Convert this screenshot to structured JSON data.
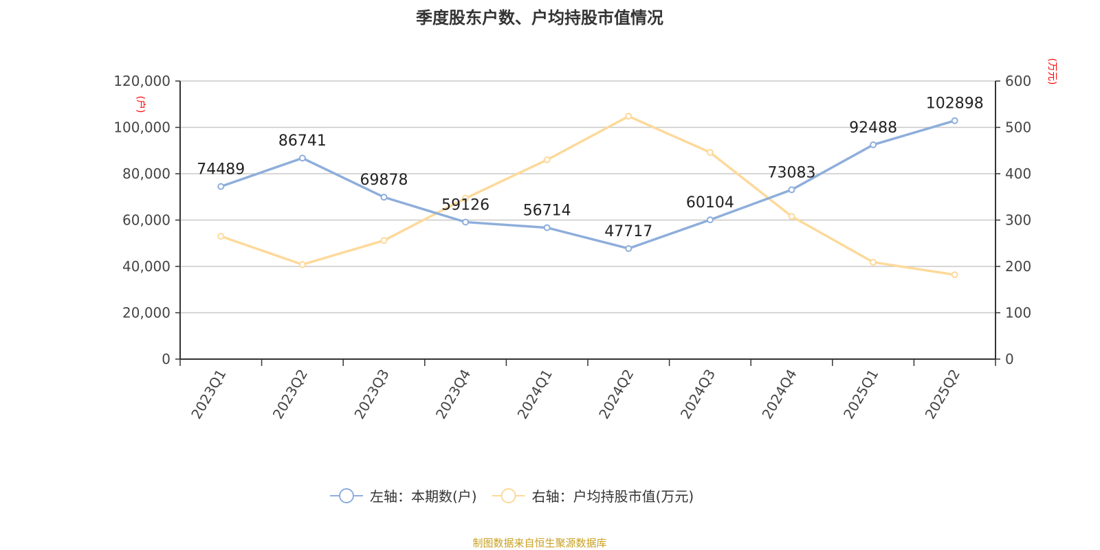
{
  "chart_data": {
    "type": "line",
    "title": "季度股东户数、户均持股市值情况",
    "categories": [
      "2023Q1",
      "2023Q2",
      "2023Q3",
      "2023Q4",
      "2024Q1",
      "2024Q2",
      "2024Q3",
      "2024Q4",
      "2025Q1",
      "2025Q2"
    ],
    "left_axis": {
      "unit_label": "(户)",
      "range": [
        0,
        120000
      ],
      "ticks": [
        "0",
        "20,000",
        "40,000",
        "60,000",
        "80,000",
        "100,000",
        "120,000"
      ]
    },
    "right_axis": {
      "unit_label": "(万元)",
      "range": [
        0,
        600
      ],
      "ticks": [
        "0",
        "100",
        "200",
        "300",
        "400",
        "500",
        "600"
      ]
    },
    "grid": true,
    "legend_placement": "bottom",
    "series": [
      {
        "name": "左轴：本期数(户)",
        "axis": "left",
        "color": "#8eaedb",
        "values": [
          74489,
          86741,
          69878,
          59126,
          56714,
          47717,
          60104,
          73083,
          92488,
          102898
        ],
        "labels": [
          "74489",
          "86741",
          "69878",
          "59126",
          "56714",
          "47717",
          "60104",
          "73083",
          "92488",
          "102898"
        ]
      },
      {
        "name": "右轴：户均持股市值(万元)",
        "axis": "right",
        "color": "#fdd99a",
        "values": [
          265,
          204,
          256,
          347,
          430,
          524,
          446,
          308,
          209,
          182
        ]
      }
    ]
  },
  "source": "制图数据来自恒生聚源数据库"
}
